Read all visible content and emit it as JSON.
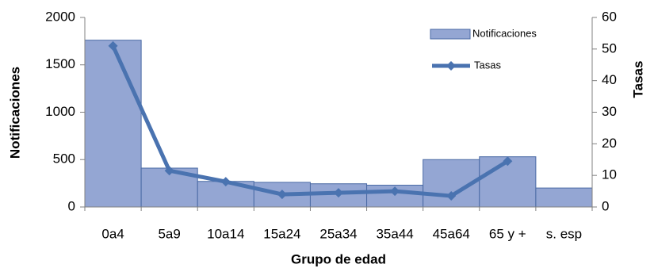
{
  "chart_data": {
    "type": "bar_line",
    "categories": [
      "0a4",
      "5a9",
      "10a14",
      "15a24",
      "25a34",
      "35a44",
      "45a64",
      "65 y +",
      "s. esp"
    ],
    "x_label": "Grupo de edad",
    "y_label": "Notificaciones",
    "y2_label": "Tasas",
    "series": [
      {
        "name": "Notificaciones",
        "type": "bar",
        "color": "#94a6d3",
        "values": [
          1760,
          410,
          270,
          260,
          245,
          230,
          500,
          530,
          200
        ]
      },
      {
        "name": "Tasas",
        "type": "line",
        "axis": "y2",
        "color": "#4a73b0",
        "values": [
          51,
          11.5,
          8,
          4,
          4.5,
          5,
          3.5,
          14.5,
          null
        ]
      }
    ],
    "ylim": [
      0,
      2000
    ],
    "yticks": [
      0,
      500,
      1000,
      1500,
      2000
    ],
    "y2lim": [
      0,
      60
    ],
    "y2ticks": [
      0,
      10,
      20,
      30,
      40,
      50,
      60
    ],
    "legend": "top-right"
  }
}
